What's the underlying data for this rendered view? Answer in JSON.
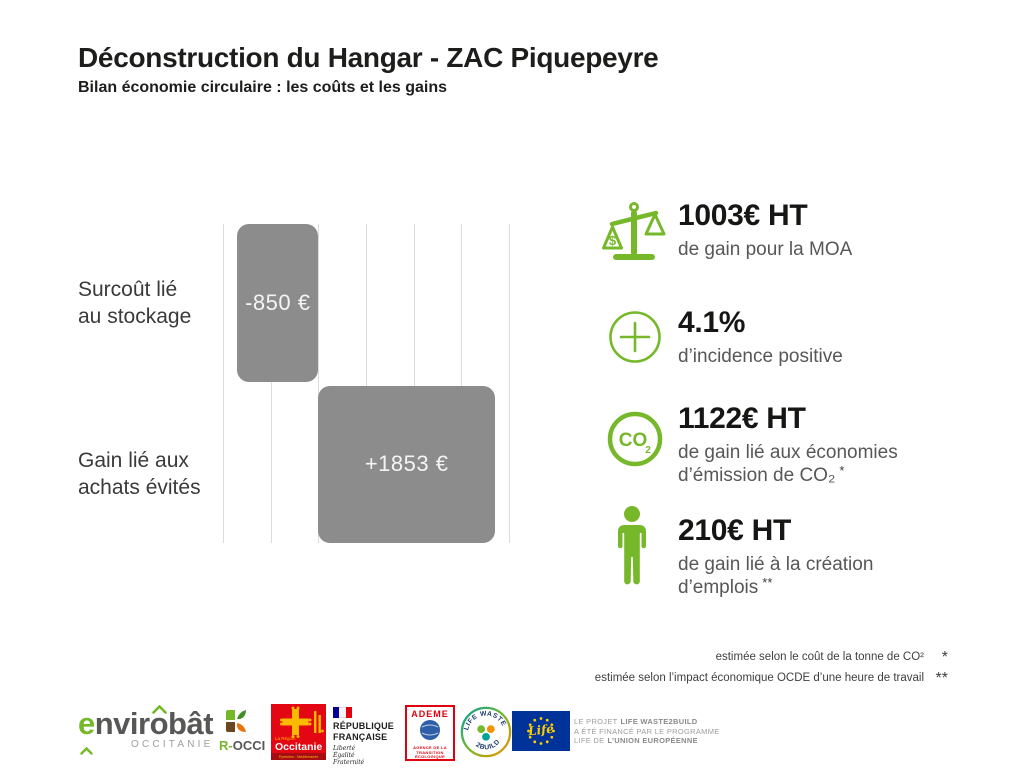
{
  "header": {
    "title": "Déconstruction du Hangar - ZAC Piquepeyre",
    "subtitle": "Bilan économie circulaire : les coûts et les gains"
  },
  "chart": {
    "row_labels": [
      {
        "line1": "Surcoût lié",
        "line2": "au stockage"
      },
      {
        "line1": "Gain lié aux",
        "line2": "achats évités"
      }
    ]
  },
  "chart_data": {
    "type": "bar",
    "orientation": "horizontal",
    "title": "",
    "categories": [
      "Surcoût lié au stockage",
      "Gain lié aux achats évités"
    ],
    "values": [
      -850,
      1853
    ],
    "bar_labels": [
      "-850 €",
      "+1853 €"
    ],
    "xlim": [
      -1000,
      2000
    ],
    "gridline_step": 500,
    "grid": true,
    "legend": false,
    "bar_color": "#8c8c8c",
    "gridline_color": "#dcdcdc"
  },
  "stats": [
    {
      "value": "1003€ HT",
      "desc1": "de gain pour la MOA",
      "icon_dollar": "$"
    },
    {
      "value": "4.1%",
      "desc1": "d’incidence positive"
    },
    {
      "value": "1122€ HT",
      "desc1": "de gain lié aux économies",
      "desc2": "d’émission de CO₂",
      "marker": "*",
      "icon_co": "CO",
      "icon_sub": "2"
    },
    {
      "value": "210€ HT",
      "desc1": "de gain lié à la création",
      "desc2": "d’emplois",
      "marker": "**"
    }
  ],
  "footnotes": [
    {
      "text": "estimée selon le coût de la tonne de CO²",
      "marker": "*"
    },
    {
      "text": "estimée selon l’impact économique OCDE d’une heure de travail",
      "marker": "**"
    }
  ],
  "footer": {
    "envirobat": {
      "e": "e",
      "rest": "nvirobât",
      "region": "OCCITANIE",
      "rocci_r": "R-",
      "rocci_rest": "OCCI"
    },
    "occitanie": {
      "la_region": "La Région",
      "name": "Occitanie",
      "sub": "Pyrénées - Méditerranée"
    },
    "republique": {
      "line1": "RÉPUBLIQUE",
      "line2": "FRANÇAISE",
      "motto1": "Liberté",
      "motto2": "Égalité",
      "motto3": "Fraternité"
    },
    "ademe": {
      "name": "ADEME",
      "sub1": "AGENCE DE LA",
      "sub2": "TRANSITION",
      "sub3": "ÉCOLOGIQUE"
    },
    "lifewaste": {
      "arc_top": "LIFE WASTE",
      "arc_bottom": "2BUILD"
    },
    "eu_life": {
      "script": "Life"
    },
    "funding": {
      "l1_pre": "LE PROJET",
      "l1_bold": "LIFE WASTE2BUILD",
      "l2": "A ÉTÉ FINANCÉ PAR LE PROGRAMME",
      "l3_pre": "LIFE DE",
      "l3_bold": "L’UNION EUROPÉENNE"
    }
  },
  "colors": {
    "accent_green": "#76b82a",
    "bar_gray": "#8c8c8c",
    "text_dark": "#1d1d1b",
    "text_gray": "#575756"
  }
}
